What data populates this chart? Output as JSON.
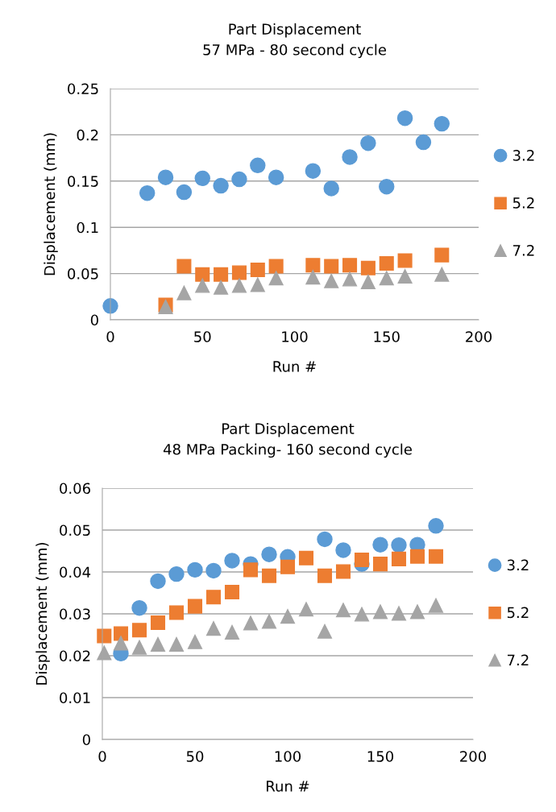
{
  "chart_data": [
    {
      "type": "scatter",
      "title": "Part Displacement",
      "subtitle": "57 MPa - 80 second cycle",
      "xlabel": "Run #",
      "ylabel": "Displacement (mm)",
      "xlim": [
        0,
        200
      ],
      "xticks": [
        0,
        50,
        100,
        150,
        200
      ],
      "ylim": [
        0,
        0.25
      ],
      "yticks": [
        0,
        0.05,
        0.1,
        0.15,
        0.2,
        0.25
      ],
      "grid": "y",
      "legend": "right",
      "series": [
        {
          "name": "3.2",
          "color": "#5b9bd5",
          "marker": "circle",
          "x": [
            0,
            20,
            30,
            40,
            50,
            60,
            70,
            80,
            90,
            110,
            120,
            130,
            140,
            150,
            160,
            170,
            180
          ],
          "values": [
            0.015,
            0.137,
            0.154,
            0.138,
            0.153,
            0.145,
            0.152,
            0.167,
            0.154,
            0.161,
            0.142,
            0.176,
            0.191,
            0.144,
            0.218,
            0.192,
            0.212
          ]
        },
        {
          "name": "5.2",
          "color": "#ed7d31",
          "marker": "square",
          "x": [
            30,
            40,
            50,
            60,
            70,
            80,
            90,
            110,
            120,
            130,
            140,
            150,
            160,
            180
          ],
          "values": [
            0.016,
            0.058,
            0.049,
            0.049,
            0.051,
            0.054,
            0.058,
            0.059,
            0.058,
            0.059,
            0.056,
            0.061,
            0.064,
            0.07
          ]
        },
        {
          "name": "7.2",
          "color": "#a5a5a5",
          "marker": "triangle",
          "x": [
            30,
            40,
            50,
            60,
            70,
            80,
            90,
            110,
            120,
            130,
            140,
            150,
            160,
            180
          ],
          "values": [
            0.014,
            0.029,
            0.037,
            0.035,
            0.037,
            0.038,
            0.045,
            0.046,
            0.042,
            0.044,
            0.041,
            0.045,
            0.047,
            0.049
          ]
        }
      ]
    },
    {
      "type": "scatter",
      "title": "Part Displacement",
      "subtitle": "48 MPa Packing- 160 second cycle",
      "xlabel": "Run #",
      "ylabel": "Displacement (mm)",
      "xlim": [
        0,
        200
      ],
      "xticks": [
        0,
        50,
        100,
        150,
        200
      ],
      "ylim": [
        0,
        0.06
      ],
      "yticks": [
        0,
        0.01,
        0.02,
        0.03,
        0.04,
        0.05,
        0.06
      ],
      "grid": "y",
      "legend": "right",
      "series": [
        {
          "name": "3.2",
          "color": "#5b9bd5",
          "marker": "circle",
          "x": [
            10,
            20,
            30,
            40,
            50,
            60,
            70,
            80,
            90,
            100,
            110,
            120,
            130,
            140,
            150,
            160,
            170,
            180
          ],
          "values": [
            0.0205,
            0.0314,
            0.0378,
            0.0395,
            0.0405,
            0.0403,
            0.0427,
            0.0419,
            0.0442,
            0.0436,
            null,
            0.0478,
            0.0452,
            0.0419,
            0.0465,
            0.0464,
            0.0465,
            0.051
          ]
        },
        {
          "name": "5.2",
          "color": "#ed7d31",
          "marker": "square",
          "x": [
            1,
            10,
            20,
            30,
            40,
            50,
            60,
            70,
            80,
            90,
            100,
            110,
            120,
            130,
            140,
            150,
            160,
            170,
            180
          ],
          "values": [
            0.0247,
            0.0253,
            0.0261,
            0.0279,
            0.0303,
            0.0318,
            0.034,
            0.0352,
            0.0405,
            0.0391,
            0.0412,
            0.0433,
            0.0391,
            0.0401,
            0.0429,
            0.0419,
            0.0431,
            0.0437,
            0.0437
          ]
        },
        {
          "name": "7.2",
          "color": "#a5a5a5",
          "marker": "triangle",
          "x": [
            1,
            10,
            20,
            30,
            40,
            50,
            60,
            70,
            80,
            90,
            100,
            110,
            120,
            130,
            140,
            150,
            160,
            170,
            180
          ],
          "values": [
            0.0207,
            0.023,
            0.022,
            0.0227,
            0.0227,
            0.0233,
            0.0265,
            0.0256,
            0.0278,
            0.0282,
            0.0294,
            0.0311,
            0.0258,
            0.0309,
            0.0299,
            0.0305,
            0.0301,
            0.0305,
            0.032
          ]
        }
      ]
    }
  ]
}
